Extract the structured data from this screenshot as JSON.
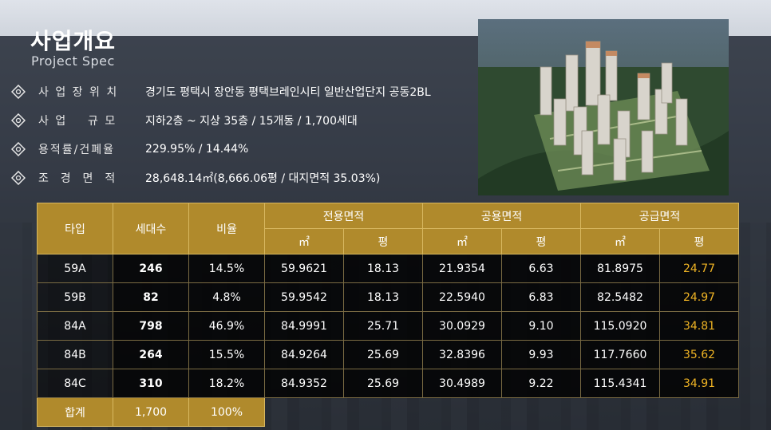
{
  "header": {
    "title": "사업개요",
    "subtitle": "Project Spec"
  },
  "specs": [
    {
      "label": "사 업 장  위 치",
      "value": "경기도 평택시 장안동 평택브레인시티 일반산업단지 공동2BL",
      "icon": "diamond-bullet-icon"
    },
    {
      "label": "사 업    규 모",
      "value": "지하2층 ~ 지상 35층  / 15개동 / 1,700세대",
      "icon": "diamond-bullet-icon"
    },
    {
      "label": "용적률/건폐율",
      "value": "229.95% / 14.44%",
      "icon": "diamond-bullet-icon"
    },
    {
      "label": "조  경  면  적",
      "value": "28,648.14㎡(8,666.06평 / 대지면적 35.03%)",
      "icon": "diamond-bullet-icon"
    }
  ],
  "table": {
    "headers": {
      "type": "타입",
      "units": "세대수",
      "ratio": "비율",
      "exclusive": "전용면적",
      "common": "공용면적",
      "supply": "공급면적",
      "sqm": "㎡",
      "pyeong": "평"
    },
    "rows": [
      {
        "type": "59A",
        "units": "246",
        "ratio": "14.5%",
        "ex_m": "59.9621",
        "ex_p": "18.13",
        "co_m": "21.9354",
        "co_p": "6.63",
        "su_m": "81.8975",
        "su_p": "24.77"
      },
      {
        "type": "59B",
        "units": "82",
        "ratio": "4.8%",
        "ex_m": "59.9542",
        "ex_p": "18.13",
        "co_m": "22.5940",
        "co_p": "6.83",
        "su_m": "82.5482",
        "su_p": "24.97"
      },
      {
        "type": "84A",
        "units": "798",
        "ratio": "46.9%",
        "ex_m": "84.9991",
        "ex_p": "25.71",
        "co_m": "30.0929",
        "co_p": "9.10",
        "su_m": "115.0920",
        "su_p": "34.81"
      },
      {
        "type": "84B",
        "units": "264",
        "ratio": "15.5%",
        "ex_m": "84.9264",
        "ex_p": "25.69",
        "co_m": "32.8396",
        "co_p": "9.93",
        "su_m": "117.7660",
        "su_p": "35.62"
      },
      {
        "type": "84C",
        "units": "310",
        "ratio": "18.2%",
        "ex_m": "84.9352",
        "ex_p": "25.69",
        "co_m": "30.4989",
        "co_p": "9.22",
        "su_m": "115.4341",
        "su_p": "34.91"
      }
    ],
    "total": {
      "label": "합계",
      "units": "1,700",
      "ratio": "100%"
    }
  },
  "colors": {
    "gold": "#b08a2c",
    "highlight": "#f0b424"
  }
}
